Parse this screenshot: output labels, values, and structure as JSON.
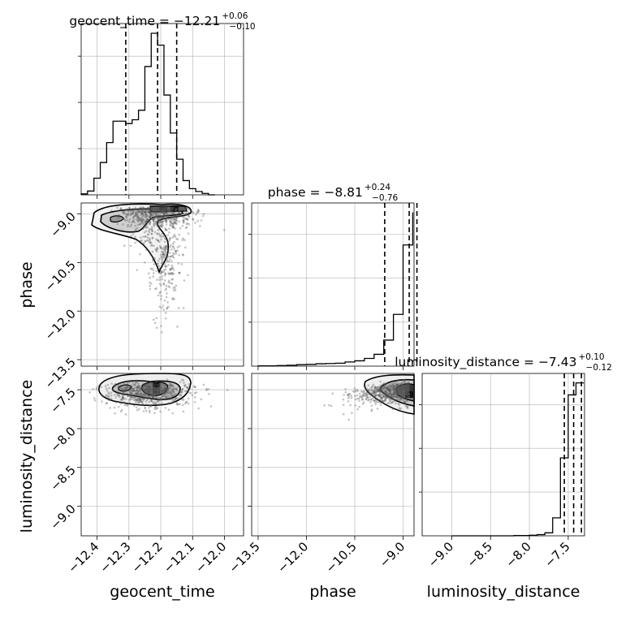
{
  "chart_data": {
    "type": "corner",
    "grid": true,
    "parameters": [
      "geocent_time",
      "phase",
      "luminosity_distance"
    ],
    "titles": [
      {
        "param": "geocent_time",
        "prefix": "geocent_time = ",
        "median": "−12.21",
        "plus": "+0.06",
        "minus": "−0.10"
      },
      {
        "param": "phase",
        "prefix": "phase = ",
        "median": "−8.81",
        "plus": "+0.24",
        "minus": "−0.76"
      },
      {
        "param": "luminosity_distance",
        "prefix": "luminosity_distance = ",
        "median": "−7.43",
        "plus": "+0.10",
        "minus": "−0.12"
      }
    ],
    "axis_labels": {
      "geocent_time": "geocent_time",
      "phase": "phase",
      "luminosity_distance": "luminosity_distance"
    },
    "ranges": {
      "geocent_time": [
        -12.45,
        -11.94
      ],
      "phase": [
        -13.7,
        -8.66
      ],
      "luminosity_distance": [
        -9.38,
        -7.29
      ]
    },
    "ticks": {
      "geocent_time": [
        {
          "v": -12.4,
          "t": "−12.4"
        },
        {
          "v": -12.3,
          "t": "−12.3"
        },
        {
          "v": -12.2,
          "t": "−12.2"
        },
        {
          "v": -12.1,
          "t": "−12.1"
        },
        {
          "v": -12.0,
          "t": "−12.0"
        }
      ],
      "phase": [
        {
          "v": -13.5,
          "t": "−13.5"
        },
        {
          "v": -12.0,
          "t": "−12.0"
        },
        {
          "v": -10.5,
          "t": "−10.5"
        },
        {
          "v": -9.0,
          "t": "−9.0"
        }
      ],
      "luminosity_distance": [
        {
          "v": -9.0,
          "t": "−9.0"
        },
        {
          "v": -8.5,
          "t": "−8.5"
        },
        {
          "v": -8.0,
          "t": "−8.0"
        },
        {
          "v": -7.5,
          "t": "−7.5"
        }
      ]
    },
    "quantiles": {
      "geocent_time": [
        -12.31,
        -12.21,
        -12.15
      ],
      "phase": [
        -9.57,
        -8.81,
        -8.57
      ],
      "luminosity_distance": [
        -7.55,
        -7.43,
        -7.33
      ]
    },
    "histograms": {
      "geocent_time": {
        "edges": [
          -12.45,
          -12.43,
          -12.41,
          -12.39,
          -12.37,
          -12.35,
          -12.33,
          -12.31,
          -12.29,
          -12.27,
          -12.25,
          -12.23,
          -12.21,
          -12.19,
          -12.17,
          -12.15,
          -12.13,
          -12.11,
          -12.09,
          -12.07,
          -12.05,
          -12.03
        ],
        "counts": [
          2,
          8,
          35,
          68,
          110,
          155,
          155,
          150,
          158,
          178,
          270,
          340,
          315,
          210,
          130,
          75,
          30,
          13,
          7,
          3,
          0
        ]
      },
      "phase": {
        "edges": [
          -13.5,
          -13.2,
          -12.9,
          -12.6,
          -12.3,
          -12.0,
          -11.7,
          -11.4,
          -11.1,
          -10.8,
          -10.5,
          -10.2,
          -9.9,
          -9.6,
          -9.3,
          -9.0,
          -8.7
        ],
        "counts": [
          1,
          1,
          2,
          3,
          5,
          6,
          8,
          9,
          10,
          14,
          18,
          26,
          40,
          88,
          175,
          410,
          520
        ]
      },
      "luminosity_distance": {
        "edges": [
          -9.0,
          -8.9,
          -8.8,
          -8.7,
          -8.6,
          -8.5,
          -8.4,
          -8.3,
          -8.2,
          -8.1,
          -8.0,
          -7.9,
          -7.8,
          -7.7,
          -7.6,
          -7.5,
          -7.4,
          -7.3
        ],
        "counts": [
          0,
          0,
          0,
          0,
          0,
          0,
          0,
          0,
          1,
          1,
          2,
          4,
          10,
          60,
          260,
          470,
          510
        ]
      }
    }
  }
}
